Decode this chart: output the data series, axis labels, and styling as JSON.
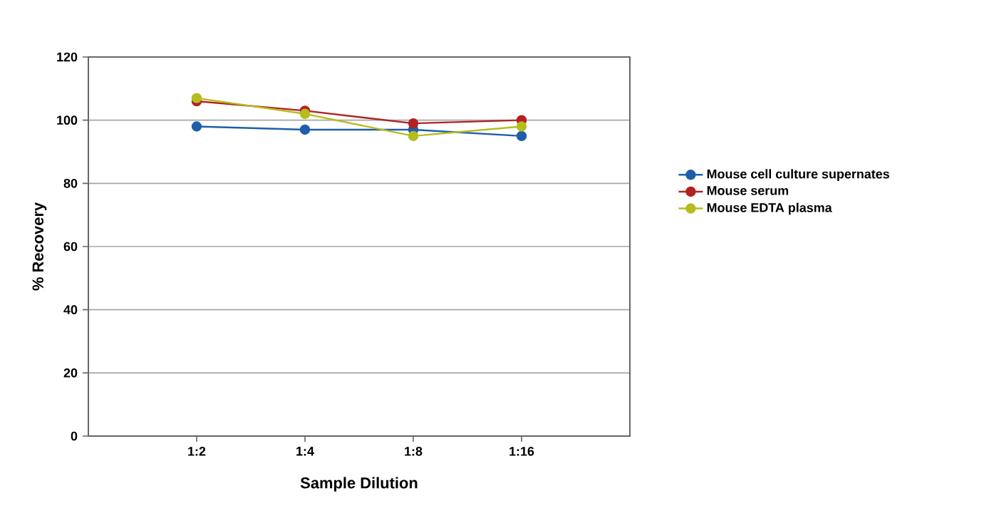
{
  "chart_data": {
    "type": "line",
    "xlabel": "Sample Dilution",
    "ylabel": "% Recovery",
    "categories": [
      "1:2",
      "1:4",
      "1:8",
      "1:16"
    ],
    "series": [
      {
        "name": "Mouse cell culture supernates",
        "color": "#1f5ea8",
        "values": [
          98,
          97,
          97,
          95
        ]
      },
      {
        "name": "Mouse serum",
        "color": "#b22222",
        "values": [
          106,
          103,
          99,
          100
        ]
      },
      {
        "name": "Mouse EDTA plasma",
        "color": "#b5bd1e",
        "values": [
          107,
          102,
          95,
          98
        ]
      }
    ],
    "ylim": [
      0,
      120
    ],
    "yticks": [
      0,
      20,
      40,
      60,
      80,
      100,
      120
    ],
    "grid": "y",
    "legend": "right",
    "marker": "circle",
    "line_style": "solid"
  }
}
